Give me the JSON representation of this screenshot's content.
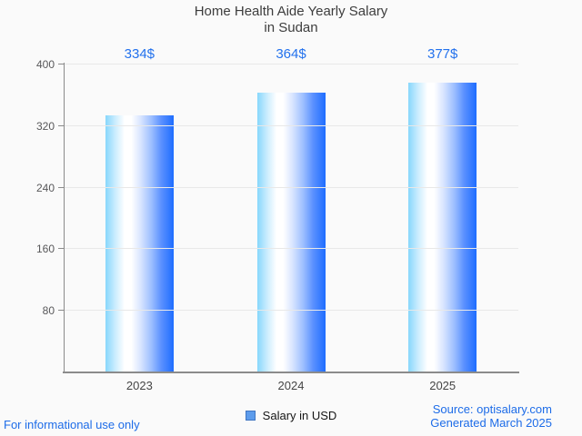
{
  "title": {
    "line1": "Home Health Aide Yearly Salary",
    "line2": "in Sudan"
  },
  "chart_data": {
    "type": "bar",
    "title": "Home Health Aide Yearly Salary in Sudan",
    "categories": [
      "2023",
      "2024",
      "2025"
    ],
    "values": [
      334,
      364,
      377
    ],
    "value_labels": [
      "334$",
      "364$",
      "377$"
    ],
    "series": [
      {
        "name": "Salary in USD",
        "values": [
          334,
          364,
          377
        ]
      }
    ],
    "xlabel": "",
    "ylabel": "",
    "ylim": [
      0,
      400
    ],
    "yticks": [
      80,
      160,
      240,
      320,
      400
    ],
    "grid": true,
    "legend_position": "bottom-center",
    "colors": {
      "value_label": "#2271ed",
      "bar_gradient_stops": [
        "#87d7fc 0%",
        "#c9ecfe 14%",
        "#ffffff 28%",
        "#ffffff 38%",
        "#d7e4ff 52%",
        "#9abdff 68%",
        "#5a90ff 82%",
        "#1e6dff 100%"
      ],
      "gridline": "#e8e8e8",
      "axis_line": "#8b8b8b",
      "tick_text": "#58585a",
      "category_text": "#454545",
      "title_text": "#3d3d3d"
    }
  },
  "legend": {
    "label": "Salary in USD",
    "marker_fill": "#5d9cec",
    "marker_border": "#3f76c2"
  },
  "footer": {
    "disclaimer": "For informational use only",
    "source": "Source: optisalary.com",
    "generated": "Generated March 2025",
    "link_color": "#1d6ce8"
  }
}
